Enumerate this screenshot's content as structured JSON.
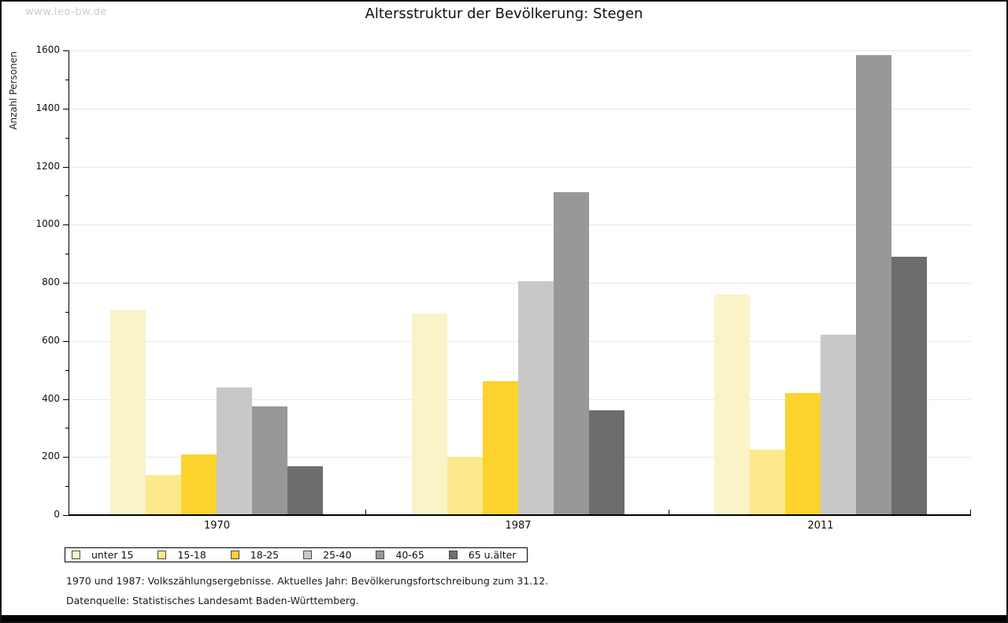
{
  "watermark": "www.leo-bw.de",
  "title": "Altersstruktur der Bevölkerung: Stegen",
  "y_axis_label": "Anzahl Personen",
  "footnotes": {
    "line1": "1970 und 1987: Volkszählungsergebnisse. Aktuelles Jahr: Bevölkerungsfortschreibung zum 31.12.",
    "line2": "Datenquelle: Statistisches Landesamt Baden-Württemberg."
  },
  "colors": {
    "grid": "#e7e7e7",
    "axis": "#000000",
    "text": "#111111",
    "watermark": "#cccccc",
    "bottom_bar": "#000000",
    "legend_border": "#000000"
  },
  "chart_data": {
    "type": "bar",
    "title": "Altersstruktur der Bevölkerung: Stegen",
    "xlabel": "",
    "ylabel": "Anzahl Personen",
    "ylim": [
      0,
      1600
    ],
    "ytick_interval": 200,
    "yminor_interval": 100,
    "grid": true,
    "legend_position": "bottom",
    "categories": [
      "1970",
      "1987",
      "2011"
    ],
    "series": [
      {
        "name": "unter 15",
        "color": "#faf3c8",
        "values": [
          705,
          695,
          760
        ]
      },
      {
        "name": "15-18",
        "color": "#fce98b",
        "values": [
          138,
          200,
          226
        ]
      },
      {
        "name": "18-25",
        "color": "#fcd42d",
        "values": [
          210,
          460,
          420
        ]
      },
      {
        "name": "25-40",
        "color": "#c8c8c8",
        "values": [
          440,
          806,
          622
        ]
      },
      {
        "name": "40-65",
        "color": "#989898",
        "values": [
          373,
          1112,
          1583
        ]
      },
      {
        "name": "65 u.älter",
        "color": "#6d6d6d",
        "values": [
          168,
          360,
          890
        ]
      }
    ]
  }
}
